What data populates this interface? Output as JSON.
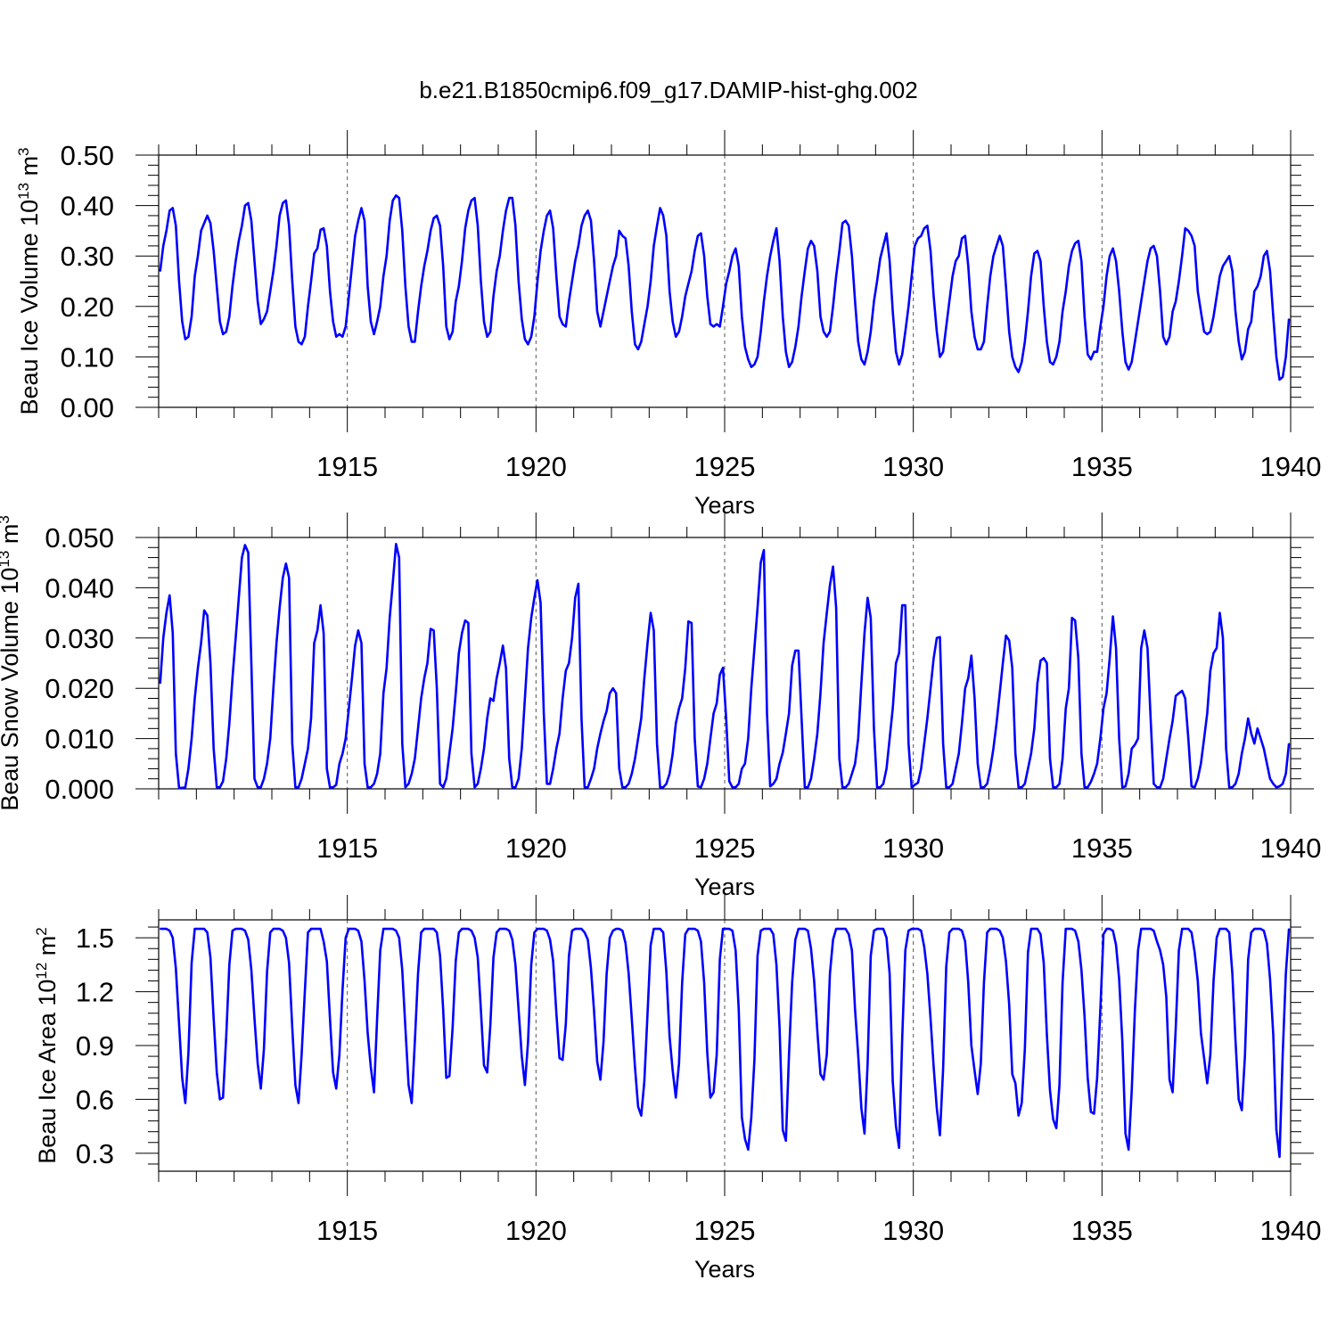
{
  "title": "b.e21.B1850cmip6.f09_g17.DAMIP-hist-ghg.002",
  "line_color": "#0000ff",
  "chart_data": [
    {
      "type": "line",
      "ylabel": "Beau Ice Volume 10",
      "ylabel_sup": "13",
      "ylabel_unit": " m",
      "ylabel_unit_sup": "3",
      "xlabel": "Years",
      "xlim": [
        1910,
        1940
      ],
      "ylim": [
        0,
        0.5
      ],
      "xticks": [
        1915,
        1920,
        1925,
        1930,
        1935,
        1940
      ],
      "xtick_labels": [
        "1915",
        "1920",
        "1925",
        "1930",
        "1935",
        "1940"
      ],
      "yticks": [
        0,
        0.1,
        0.2,
        0.3,
        0.4,
        0.5
      ],
      "ytick_labels": [
        "0.00",
        "0.10",
        "0.20",
        "0.30",
        "0.40",
        "0.50"
      ],
      "x_start": 1910.04,
      "x_step": 0.08333,
      "values": [
        0.27,
        0.32,
        0.35,
        0.39,
        0.395,
        0.36,
        0.25,
        0.17,
        0.135,
        0.14,
        0.18,
        0.26,
        0.3,
        0.35,
        0.365,
        0.38,
        0.365,
        0.31,
        0.24,
        0.17,
        0.145,
        0.15,
        0.18,
        0.24,
        0.29,
        0.33,
        0.36,
        0.4,
        0.405,
        0.37,
        0.29,
        0.21,
        0.165,
        0.175,
        0.19,
        0.23,
        0.27,
        0.32,
        0.38,
        0.405,
        0.41,
        0.36,
        0.25,
        0.16,
        0.13,
        0.125,
        0.14,
        0.2,
        0.25,
        0.305,
        0.315,
        0.352,
        0.355,
        0.32,
        0.23,
        0.17,
        0.14,
        0.145,
        0.14,
        0.16,
        0.22,
        0.28,
        0.34,
        0.37,
        0.395,
        0.37,
        0.24,
        0.17,
        0.145,
        0.17,
        0.2,
        0.26,
        0.3,
        0.37,
        0.41,
        0.42,
        0.415,
        0.35,
        0.24,
        0.16,
        0.13,
        0.13,
        0.19,
        0.24,
        0.28,
        0.31,
        0.35,
        0.375,
        0.38,
        0.36,
        0.28,
        0.16,
        0.135,
        0.15,
        0.21,
        0.24,
        0.29,
        0.355,
        0.39,
        0.41,
        0.415,
        0.36,
        0.25,
        0.17,
        0.14,
        0.15,
        0.22,
        0.27,
        0.3,
        0.35,
        0.39,
        0.415,
        0.415,
        0.36,
        0.25,
        0.175,
        0.135,
        0.125,
        0.14,
        0.18,
        0.25,
        0.31,
        0.35,
        0.38,
        0.39,
        0.355,
        0.26,
        0.18,
        0.165,
        0.16,
        0.21,
        0.25,
        0.29,
        0.32,
        0.36,
        0.38,
        0.39,
        0.37,
        0.29,
        0.19,
        0.16,
        0.19,
        0.22,
        0.25,
        0.28,
        0.3,
        0.35,
        0.34,
        0.335,
        0.28,
        0.19,
        0.125,
        0.115,
        0.13,
        0.165,
        0.2,
        0.25,
        0.32,
        0.36,
        0.395,
        0.38,
        0.34,
        0.23,
        0.17,
        0.14,
        0.15,
        0.18,
        0.22,
        0.245,
        0.27,
        0.31,
        0.34,
        0.345,
        0.3,
        0.22,
        0.165,
        0.16,
        0.165,
        0.16,
        0.2,
        0.245,
        0.27,
        0.3,
        0.315,
        0.28,
        0.18,
        0.12,
        0.095,
        0.08,
        0.085,
        0.1,
        0.15,
        0.21,
        0.26,
        0.3,
        0.33,
        0.355,
        0.29,
        0.18,
        0.11,
        0.08,
        0.09,
        0.12,
        0.16,
        0.22,
        0.27,
        0.315,
        0.33,
        0.32,
        0.27,
        0.18,
        0.15,
        0.14,
        0.15,
        0.2,
        0.26,
        0.31,
        0.365,
        0.37,
        0.36,
        0.3,
        0.21,
        0.13,
        0.095,
        0.085,
        0.11,
        0.15,
        0.21,
        0.25,
        0.295,
        0.32,
        0.345,
        0.29,
        0.19,
        0.11,
        0.085,
        0.105,
        0.15,
        0.2,
        0.26,
        0.32,
        0.335,
        0.34,
        0.355,
        0.36,
        0.31,
        0.22,
        0.15,
        0.1,
        0.11,
        0.16,
        0.21,
        0.26,
        0.29,
        0.3,
        0.335,
        0.34,
        0.28,
        0.19,
        0.14,
        0.115,
        0.115,
        0.13,
        0.2,
        0.26,
        0.3,
        0.32,
        0.34,
        0.32,
        0.24,
        0.15,
        0.1,
        0.08,
        0.07,
        0.09,
        0.13,
        0.19,
        0.26,
        0.305,
        0.31,
        0.29,
        0.2,
        0.13,
        0.09,
        0.085,
        0.1,
        0.13,
        0.19,
        0.23,
        0.28,
        0.31,
        0.325,
        0.33,
        0.29,
        0.18,
        0.105,
        0.095,
        0.11,
        0.11,
        0.16,
        0.2,
        0.26,
        0.3,
        0.315,
        0.29,
        0.23,
        0.15,
        0.09,
        0.075,
        0.09,
        0.13,
        0.17,
        0.21,
        0.25,
        0.29,
        0.315,
        0.32,
        0.3,
        0.23,
        0.14,
        0.125,
        0.14,
        0.19,
        0.21,
        0.25,
        0.3,
        0.355,
        0.35,
        0.34,
        0.32,
        0.23,
        0.19,
        0.15,
        0.145,
        0.15,
        0.18,
        0.22,
        0.26,
        0.28,
        0.29,
        0.3,
        0.27,
        0.19,
        0.13,
        0.095,
        0.11,
        0.155,
        0.17,
        0.23,
        0.24,
        0.26,
        0.3,
        0.31,
        0.27,
        0.18,
        0.1,
        0.055,
        0.06,
        0.1,
        0.175
      ]
    },
    {
      "type": "line",
      "ylabel": "Beau Snow Volume 10",
      "ylabel_sup": "13",
      "ylabel_unit": " m",
      "ylabel_unit_sup": "3",
      "xlabel": "Years",
      "xlim": [
        1910,
        1940
      ],
      "ylim": [
        0,
        0.05
      ],
      "xticks": [
        1915,
        1920,
        1925,
        1930,
        1935,
        1940
      ],
      "xtick_labels": [
        "1915",
        "1920",
        "1925",
        "1930",
        "1935",
        "1940"
      ],
      "yticks": [
        0,
        0.01,
        0.02,
        0.03,
        0.04,
        0.05
      ],
      "ytick_labels": [
        "0.000",
        "0.010",
        "0.020",
        "0.030",
        "0.040",
        "0.050"
      ],
      "x_start": 1910.04,
      "x_step": 0.08333,
      "values": [
        0.021,
        0.03,
        0.035,
        0.0385,
        0.031,
        0.007,
        0.0002,
        0.0002,
        0.0003,
        0.004,
        0.01,
        0.018,
        0.024,
        0.029,
        0.0355,
        0.0345,
        0.025,
        0.008,
        0.0003,
        0.0003,
        0.0015,
        0.006,
        0.013,
        0.022,
        0.03,
        0.038,
        0.046,
        0.0485,
        0.047,
        0.025,
        0.002,
        0.0003,
        0.0003,
        0.002,
        0.005,
        0.01,
        0.02,
        0.029,
        0.036,
        0.042,
        0.0448,
        0.042,
        0.009,
        0.0003,
        0.0003,
        0.002,
        0.005,
        0.008,
        0.014,
        0.029,
        0.0315,
        0.0365,
        0.031,
        0.004,
        0.0003,
        0.0003,
        0.0008,
        0.005,
        0.007,
        0.01,
        0.016,
        0.022,
        0.0285,
        0.0315,
        0.029,
        0.005,
        0.0003,
        0.0003,
        0.001,
        0.003,
        0.007,
        0.019,
        0.024,
        0.034,
        0.041,
        0.0487,
        0.046,
        0.009,
        0.0003,
        0.001,
        0.003,
        0.006,
        0.012,
        0.018,
        0.022,
        0.025,
        0.0318,
        0.0315,
        0.02,
        0.001,
        0.0003,
        0.002,
        0.007,
        0.012,
        0.019,
        0.027,
        0.031,
        0.0335,
        0.033,
        0.007,
        0.0003,
        0.001,
        0.004,
        0.008,
        0.014,
        0.018,
        0.0175,
        0.022,
        0.025,
        0.0285,
        0.024,
        0.006,
        0.0003,
        0.0003,
        0.002,
        0.008,
        0.018,
        0.028,
        0.034,
        0.038,
        0.0415,
        0.037,
        0.015,
        0.001,
        0.001,
        0.004,
        0.008,
        0.011,
        0.018,
        0.0235,
        0.025,
        0.03,
        0.038,
        0.0408,
        0.014,
        0.0003,
        0.0003,
        0.002,
        0.004,
        0.008,
        0.011,
        0.0135,
        0.0155,
        0.019,
        0.02,
        0.019,
        0.004,
        0.0003,
        0.0003,
        0.001,
        0.003,
        0.006,
        0.01,
        0.014,
        0.022,
        0.029,
        0.035,
        0.0315,
        0.009,
        0.0003,
        0.0003,
        0.001,
        0.003,
        0.007,
        0.013,
        0.016,
        0.018,
        0.024,
        0.0333,
        0.033,
        0.01,
        0.0005,
        0.0003,
        0.002,
        0.005,
        0.01,
        0.015,
        0.017,
        0.0227,
        0.0241,
        0.014,
        0.0015,
        0.0003,
        0.0003,
        0.001,
        0.004,
        0.005,
        0.01,
        0.02,
        0.028,
        0.036,
        0.045,
        0.0475,
        0.015,
        0.0005,
        0.001,
        0.002,
        0.005,
        0.0072,
        0.011,
        0.015,
        0.0245,
        0.0275,
        0.0275,
        0.014,
        0.0003,
        0.0003,
        0.002,
        0.006,
        0.011,
        0.019,
        0.029,
        0.035,
        0.0405,
        0.0442,
        0.036,
        0.006,
        0.0003,
        0.0003,
        0.001,
        0.003,
        0.005,
        0.01,
        0.021,
        0.031,
        0.038,
        0.034,
        0.012,
        0.0003,
        0.0003,
        0.001,
        0.004,
        0.01,
        0.016,
        0.025,
        0.027,
        0.0365,
        0.0365,
        0.009,
        0.0003,
        0.0008,
        0.0012,
        0.004,
        0.009,
        0.014,
        0.02,
        0.026,
        0.03,
        0.0302,
        0.009,
        0.0003,
        0.0003,
        0.001,
        0.004,
        0.007,
        0.013,
        0.02,
        0.022,
        0.0265,
        0.018,
        0.005,
        0.0003,
        0.0003,
        0.001,
        0.004,
        0.008,
        0.013,
        0.019,
        0.025,
        0.0305,
        0.0295,
        0.024,
        0.007,
        0.0003,
        0.0003,
        0.001,
        0.004,
        0.007,
        0.012,
        0.021,
        0.0255,
        0.026,
        0.025,
        0.006,
        0.0003,
        0.0003,
        0.001,
        0.006,
        0.016,
        0.02,
        0.034,
        0.0335,
        0.026,
        0.007,
        0.0003,
        0.0003,
        0.0014,
        0.003,
        0.005,
        0.01,
        0.016,
        0.019,
        0.026,
        0.0343,
        0.028,
        0.01,
        0.0003,
        0.0005,
        0.003,
        0.008,
        0.0088,
        0.01,
        0.028,
        0.0315,
        0.028,
        0.014,
        0.001,
        0.0003,
        0.0003,
        0.002,
        0.006,
        0.01,
        0.0135,
        0.0185,
        0.019,
        0.0195,
        0.018,
        0.01,
        0.0005,
        0.0003,
        0.002,
        0.005,
        0.01,
        0.015,
        0.0235,
        0.027,
        0.028,
        0.035,
        0.03,
        0.008,
        0.0003,
        0.0003,
        0.001,
        0.003,
        0.007,
        0.01,
        0.014,
        0.011,
        0.009,
        0.012,
        0.01,
        0.008,
        0.005,
        0.002,
        0.001,
        0.0003,
        0.0005,
        0.001,
        0.003,
        0.009
      ]
    },
    {
      "type": "line",
      "ylabel": "Beau Ice Area 10",
      "ylabel_sup": "12",
      "ylabel_unit": " m",
      "ylabel_unit_sup": "2",
      "xlabel": "Years",
      "xlim": [
        1910,
        1940
      ],
      "ylim": [
        0.2,
        1.6
      ],
      "xticks": [
        1915,
        1920,
        1925,
        1930,
        1935,
        1940
      ],
      "xtick_labels": [
        "1915",
        "1920",
        "1925",
        "1930",
        "1935",
        "1940"
      ],
      "yticks": [
        0.3,
        0.6,
        0.9,
        1.2,
        1.5
      ],
      "ytick_labels": [
        "0.3",
        "0.6",
        "0.9",
        "1.2",
        "1.5"
      ],
      "x_start": 1910.04,
      "x_step": 0.08333,
      "values": [
        1.55,
        1.55,
        1.55,
        1.54,
        1.5,
        1.33,
        1.02,
        0.72,
        0.58,
        0.86,
        1.36,
        1.55,
        1.55,
        1.55,
        1.55,
        1.53,
        1.39,
        1.05,
        0.75,
        0.6,
        0.61,
        0.95,
        1.35,
        1.54,
        1.55,
        1.55,
        1.55,
        1.54,
        1.49,
        1.32,
        1.05,
        0.8,
        0.66,
        0.88,
        1.31,
        1.53,
        1.55,
        1.55,
        1.55,
        1.54,
        1.5,
        1.36,
        1.0,
        0.68,
        0.58,
        0.85,
        1.2,
        1.53,
        1.55,
        1.55,
        1.55,
        1.55,
        1.48,
        1.37,
        1.05,
        0.75,
        0.66,
        0.85,
        1.21,
        1.5,
        1.55,
        1.55,
        1.55,
        1.54,
        1.48,
        1.26,
        0.97,
        0.78,
        0.64,
        1.05,
        1.43,
        1.55,
        1.55,
        1.55,
        1.55,
        1.54,
        1.5,
        1.32,
        1.0,
        0.68,
        0.58,
        0.92,
        1.3,
        1.53,
        1.55,
        1.55,
        1.55,
        1.55,
        1.53,
        1.4,
        1.1,
        0.72,
        0.73,
        1.0,
        1.37,
        1.53,
        1.55,
        1.55,
        1.55,
        1.54,
        1.5,
        1.39,
        1.1,
        0.79,
        0.75,
        1.01,
        1.39,
        1.53,
        1.55,
        1.55,
        1.55,
        1.54,
        1.49,
        1.35,
        1.1,
        0.84,
        0.68,
        0.92,
        1.35,
        1.53,
        1.55,
        1.55,
        1.55,
        1.54,
        1.49,
        1.37,
        1.08,
        0.83,
        0.82,
        1.02,
        1.4,
        1.54,
        1.55,
        1.55,
        1.55,
        1.53,
        1.49,
        1.33,
        1.09,
        0.81,
        0.71,
        0.92,
        1.3,
        1.5,
        1.54,
        1.55,
        1.55,
        1.54,
        1.47,
        1.3,
        1.05,
        0.78,
        0.56,
        0.51,
        0.7,
        1.08,
        1.46,
        1.55,
        1.55,
        1.55,
        1.53,
        1.31,
        0.95,
        0.76,
        0.61,
        0.8,
        1.25,
        1.52,
        1.55,
        1.55,
        1.55,
        1.54,
        1.48,
        1.25,
        0.86,
        0.61,
        0.64,
        0.85,
        1.38,
        1.55,
        1.55,
        1.55,
        1.54,
        1.43,
        1.1,
        0.5,
        0.38,
        0.32,
        0.5,
        0.82,
        1.4,
        1.54,
        1.55,
        1.55,
        1.55,
        1.52,
        1.35,
        1.0,
        0.43,
        0.37,
        0.85,
        1.25,
        1.49,
        1.55,
        1.55,
        1.55,
        1.54,
        1.44,
        1.26,
        0.98,
        0.74,
        0.71,
        0.85,
        1.3,
        1.49,
        1.55,
        1.55,
        1.55,
        1.55,
        1.52,
        1.43,
        1.1,
        0.85,
        0.55,
        0.41,
        0.8,
        1.4,
        1.54,
        1.55,
        1.55,
        1.55,
        1.5,
        1.3,
        0.7,
        0.45,
        0.33,
        0.94,
        1.43,
        1.54,
        1.55,
        1.55,
        1.55,
        1.54,
        1.45,
        1.3,
        1.05,
        0.78,
        0.55,
        0.4,
        0.77,
        1.34,
        1.53,
        1.55,
        1.55,
        1.55,
        1.54,
        1.48,
        1.25,
        0.9,
        0.76,
        0.63,
        0.8,
        1.25,
        1.53,
        1.55,
        1.55,
        1.55,
        1.54,
        1.5,
        1.37,
        1.13,
        0.74,
        0.69,
        0.51,
        0.58,
        0.88,
        1.42,
        1.55,
        1.55,
        1.55,
        1.52,
        1.36,
        0.96,
        0.65,
        0.49,
        0.44,
        0.68,
        1.25,
        1.55,
        1.55,
        1.55,
        1.54,
        1.48,
        1.32,
        1.06,
        0.72,
        0.53,
        0.52,
        0.72,
        1.1,
        1.52,
        1.55,
        1.55,
        1.54,
        1.46,
        1.27,
        0.92,
        0.41,
        0.32,
        0.65,
        1.1,
        1.43,
        1.55,
        1.55,
        1.55,
        1.55,
        1.54,
        1.48,
        1.43,
        1.35,
        1.17,
        0.71,
        0.64,
        1.0,
        1.43,
        1.55,
        1.55,
        1.55,
        1.53,
        1.42,
        1.26,
        0.97,
        0.83,
        0.69,
        0.85,
        1.26,
        1.5,
        1.55,
        1.55,
        1.55,
        1.53,
        1.3,
        0.93,
        0.6,
        0.54,
        0.84,
        1.38,
        1.53,
        1.55,
        1.55,
        1.55,
        1.54,
        1.47,
        1.27,
        0.96,
        0.43,
        0.28,
        0.85,
        1.3,
        1.55
      ]
    }
  ]
}
